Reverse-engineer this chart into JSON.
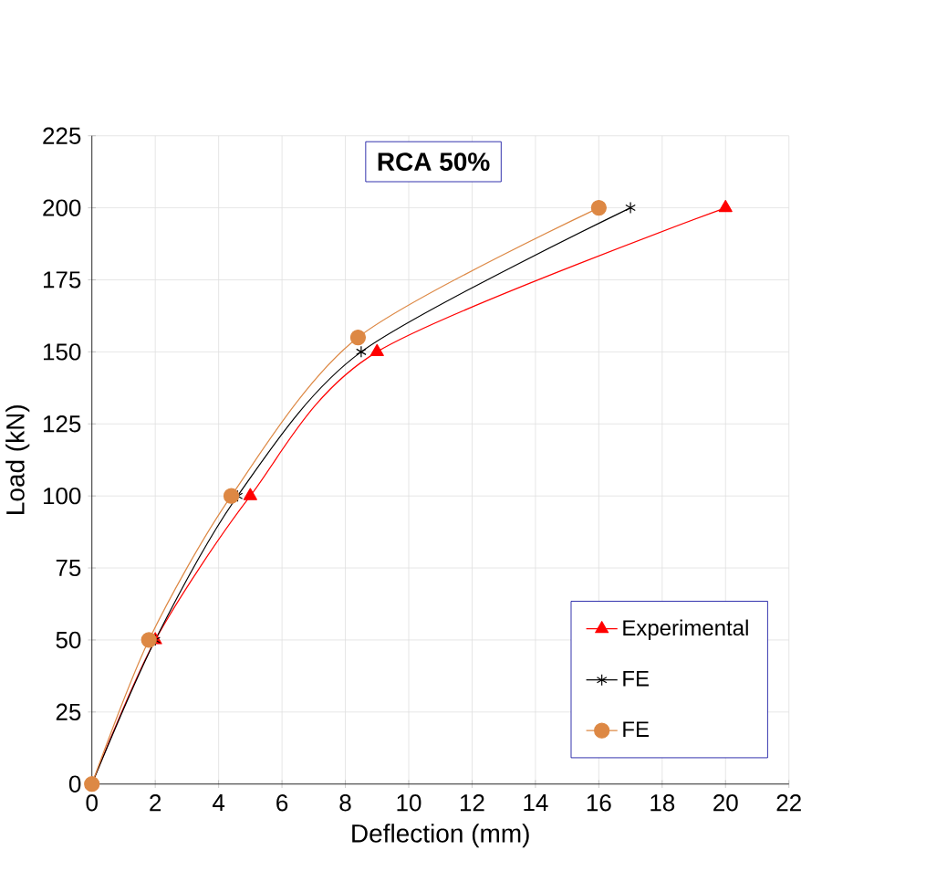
{
  "chart_data": {
    "type": "line",
    "title": "RCA 50%",
    "xlabel": "Deflection  (mm)",
    "ylabel": "Load  (kN)",
    "xlim": [
      0,
      22
    ],
    "xticks": [
      0,
      2,
      4,
      6,
      8,
      10,
      12,
      14,
      16,
      18,
      20,
      22
    ],
    "ylim": [
      0,
      225
    ],
    "yticks": [
      0,
      25,
      50,
      75,
      100,
      125,
      150,
      175,
      200,
      225
    ],
    "grid": true,
    "legend": "bottom right",
    "series": [
      {
        "name": "Experimental",
        "color": "#ff0000",
        "marker": "triangle",
        "x": [
          0,
          2,
          5,
          9,
          20
        ],
        "values": [
          0,
          50,
          100,
          150,
          200
        ]
      },
      {
        "name": "FE",
        "color": "#000000",
        "marker": "cross",
        "x": [
          0,
          2,
          4.6,
          8.5,
          17
        ],
        "values": [
          0,
          50,
          100,
          150,
          200
        ]
      },
      {
        "name": "FE",
        "color": "#dd8844",
        "marker": "circle",
        "x": [
          0,
          1.8,
          4.4,
          8.4,
          16
        ],
        "values": [
          0,
          50,
          100,
          155,
          200
        ]
      }
    ]
  }
}
